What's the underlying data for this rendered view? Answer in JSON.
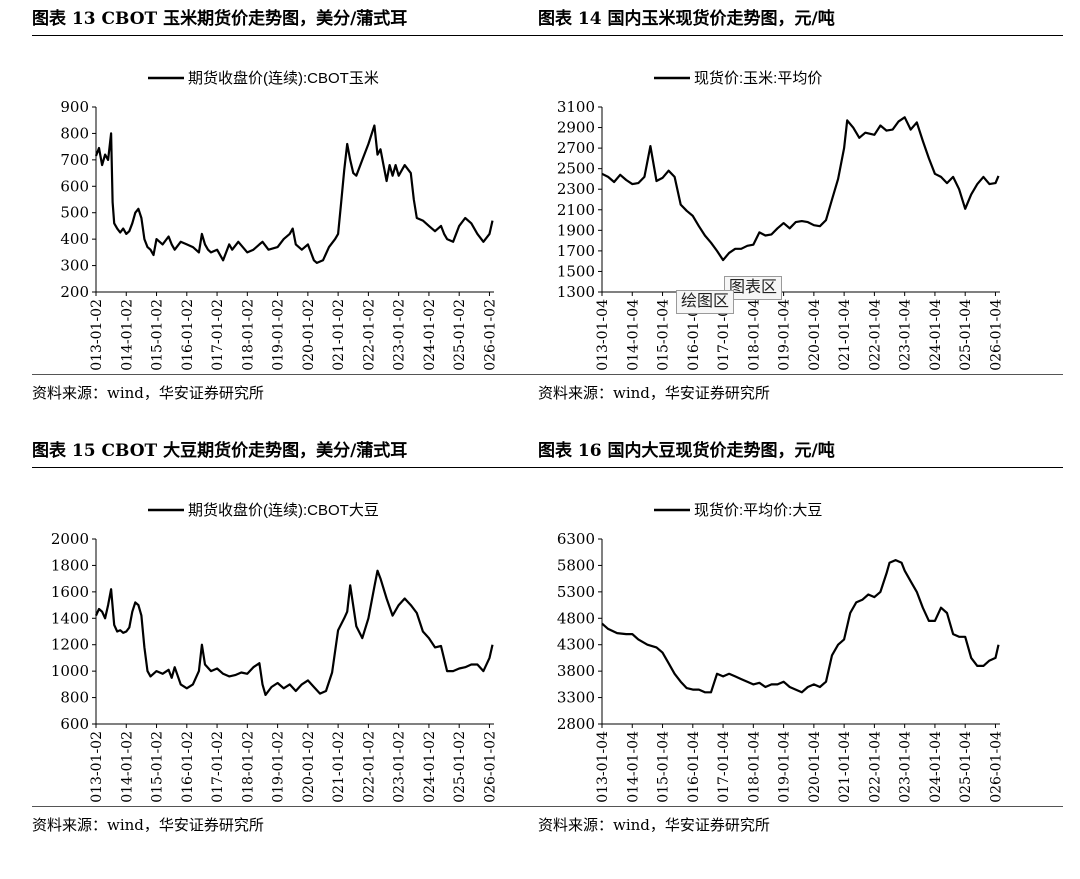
{
  "panels": [
    {
      "title": "图表 13 CBOT 玉米期货价走势图，美分/蒲式耳",
      "source": "资料来源：wind，华安证券研究所"
    },
    {
      "title": "图表 14 国内玉米现货价走势图，元/吨",
      "source": "资料来源：wind，华安证券研究所"
    },
    {
      "title": "图表 15 CBOT 大豆期货价走势图，美分/蒲式耳",
      "source": "资料来源：wind，华安证券研究所"
    },
    {
      "title": "图表 16 国内大豆现货价走势图，元/吨",
      "source": "资料来源：wind，华安证券研究所"
    }
  ],
  "overlays": {
    "plot_area_label": "图表区",
    "chart_area_label": "绘图区"
  },
  "chart_data": [
    {
      "type": "line",
      "legend": "期货收盘价(连续):CBOT玉米",
      "series": [
        {
          "name": "期货收盘价(连续):CBOT玉米",
          "x": [
            2013.0,
            2013.1,
            2013.2,
            2013.3,
            2013.4,
            2013.5,
            2013.55,
            2013.6,
            2013.7,
            2013.8,
            2013.9,
            2014.0,
            2014.1,
            2014.2,
            2014.3,
            2014.4,
            2014.5,
            2014.6,
            2014.7,
            2014.8,
            2014.9,
            2015.0,
            2015.2,
            2015.4,
            2015.5,
            2015.6,
            2015.8,
            2016.0,
            2016.2,
            2016.4,
            2016.5,
            2016.6,
            2016.7,
            2016.8,
            2017.0,
            2017.2,
            2017.4,
            2017.5,
            2017.7,
            2018.0,
            2018.2,
            2018.4,
            2018.5,
            2018.7,
            2019.0,
            2019.2,
            2019.4,
            2019.5,
            2019.6,
            2019.8,
            2020.0,
            2020.2,
            2020.3,
            2020.5,
            2020.7,
            2020.9,
            2021.0,
            2021.1,
            2021.2,
            2021.3,
            2021.4,
            2021.5,
            2021.6,
            2021.8,
            2022.0,
            2022.2,
            2022.3,
            2022.4,
            2022.5,
            2022.6,
            2022.7,
            2022.8,
            2022.9,
            2023.0,
            2023.2,
            2023.4,
            2023.5,
            2023.6,
            2023.8,
            2024.0,
            2024.2,
            2024.4,
            2024.5,
            2024.6,
            2024.8,
            2025.0,
            2025.2,
            2025.4,
            2025.6,
            2025.8,
            2026.0,
            2026.1
          ],
          "values": [
            715,
            745,
            680,
            720,
            700,
            800,
            540,
            460,
            440,
            425,
            440,
            420,
            430,
            460,
            500,
            515,
            480,
            400,
            370,
            360,
            340,
            400,
            380,
            410,
            380,
            360,
            390,
            380,
            370,
            350,
            420,
            380,
            360,
            350,
            360,
            320,
            380,
            360,
            390,
            350,
            360,
            380,
            390,
            360,
            370,
            400,
            420,
            440,
            380,
            360,
            380,
            320,
            310,
            320,
            370,
            400,
            420,
            540,
            660,
            760,
            700,
            650,
            640,
            700,
            760,
            830,
            720,
            740,
            680,
            620,
            680,
            640,
            680,
            640,
            680,
            650,
            550,
            480,
            470,
            450,
            430,
            450,
            420,
            400,
            390,
            450,
            480,
            460,
            420,
            390,
            420,
            470
          ]
        }
      ],
      "y_ticks": [
        200,
        300,
        400,
        500,
        600,
        700,
        800,
        900
      ],
      "ylim": [
        200,
        900
      ],
      "x_ticks": [
        "2013-01-02",
        "2014-01-02",
        "2015-01-02",
        "2016-01-02",
        "2017-01-02",
        "2018-01-02",
        "2019-01-02",
        "2020-01-02",
        "2021-01-02",
        "2022-01-02",
        "2023-01-02",
        "2024-01-02",
        "2025-01-02",
        "2026-01-02"
      ],
      "xlim": [
        2013.0,
        2026.15
      ]
    },
    {
      "type": "line",
      "legend": "现货价:玉米:平均价",
      "series": [
        {
          "name": "现货价:玉米:平均价",
          "x": [
            2013.0,
            2013.2,
            2013.4,
            2013.6,
            2013.8,
            2014.0,
            2014.2,
            2014.4,
            2014.6,
            2014.8,
            2015.0,
            2015.2,
            2015.4,
            2015.6,
            2015.8,
            2016.0,
            2016.2,
            2016.4,
            2016.6,
            2016.8,
            2017.0,
            2017.2,
            2017.4,
            2017.6,
            2017.8,
            2018.0,
            2018.2,
            2018.4,
            2018.6,
            2018.8,
            2019.0,
            2019.2,
            2019.4,
            2019.6,
            2019.8,
            2020.0,
            2020.2,
            2020.4,
            2020.6,
            2020.8,
            2021.0,
            2021.1,
            2021.3,
            2021.5,
            2021.7,
            2022.0,
            2022.2,
            2022.4,
            2022.6,
            2022.8,
            2023.0,
            2023.2,
            2023.4,
            2023.6,
            2023.8,
            2024.0,
            2024.2,
            2024.4,
            2024.6,
            2024.8,
            2025.0,
            2025.2,
            2025.4,
            2025.6,
            2025.8,
            2026.0,
            2026.1
          ],
          "values": [
            2450,
            2420,
            2370,
            2440,
            2390,
            2350,
            2360,
            2420,
            2720,
            2380,
            2410,
            2480,
            2420,
            2150,
            2090,
            2040,
            1940,
            1850,
            1780,
            1700,
            1610,
            1680,
            1720,
            1720,
            1750,
            1760,
            1880,
            1850,
            1860,
            1920,
            1970,
            1920,
            1980,
            1990,
            1980,
            1950,
            1940,
            2000,
            2200,
            2400,
            2700,
            2970,
            2900,
            2800,
            2850,
            2830,
            2920,
            2870,
            2880,
            2960,
            3000,
            2880,
            2950,
            2770,
            2600,
            2450,
            2420,
            2360,
            2420,
            2300,
            2110,
            2250,
            2350,
            2420,
            2350,
            2360,
            2430
          ]
        }
      ],
      "y_ticks": [
        1300,
        1500,
        1700,
        1900,
        2100,
        2300,
        2500,
        2700,
        2900,
        3100
      ],
      "ylim": [
        1300,
        3100
      ],
      "x_ticks": [
        "2013-01-04",
        "2014-01-04",
        "2015-01-04",
        "2016-01-04",
        "2017-01-04",
        "2018-01-04",
        "2019-01-04",
        "2020-01-04",
        "2021-01-04",
        "2022-01-04",
        "2023-01-04",
        "2024-01-04",
        "2025-01-04",
        "2026-01-04"
      ],
      "xlim": [
        2013.0,
        2026.15
      ]
    },
    {
      "type": "line",
      "legend": "期货收盘价(连续):CBOT大豆",
      "series": [
        {
          "name": "期货收盘价(连续):CBOT大豆",
          "x": [
            2013.0,
            2013.1,
            2013.2,
            2013.3,
            2013.4,
            2013.5,
            2013.6,
            2013.7,
            2013.8,
            2013.9,
            2014.0,
            2014.1,
            2014.2,
            2014.3,
            2014.4,
            2014.5,
            2014.6,
            2014.7,
            2014.8,
            2015.0,
            2015.2,
            2015.4,
            2015.5,
            2015.6,
            2015.8,
            2016.0,
            2016.2,
            2016.4,
            2016.5,
            2016.6,
            2016.8,
            2017.0,
            2017.2,
            2017.4,
            2017.6,
            2017.8,
            2018.0,
            2018.2,
            2018.4,
            2018.5,
            2018.6,
            2018.8,
            2019.0,
            2019.2,
            2019.4,
            2019.6,
            2019.8,
            2020.0,
            2020.2,
            2020.4,
            2020.6,
            2020.8,
            2021.0,
            2021.2,
            2021.3,
            2021.4,
            2021.6,
            2021.8,
            2022.0,
            2022.2,
            2022.3,
            2022.4,
            2022.6,
            2022.8,
            2023.0,
            2023.2,
            2023.4,
            2023.6,
            2023.8,
            2024.0,
            2024.2,
            2024.4,
            2024.6,
            2024.8,
            2025.0,
            2025.2,
            2025.4,
            2025.6,
            2025.8,
            2026.0,
            2026.1
          ],
          "values": [
            1420,
            1470,
            1450,
            1400,
            1500,
            1620,
            1350,
            1300,
            1310,
            1290,
            1300,
            1330,
            1450,
            1520,
            1500,
            1420,
            1180,
            1000,
            960,
            1000,
            980,
            1010,
            950,
            1030,
            900,
            870,
            900,
            1000,
            1200,
            1050,
            1000,
            1020,
            980,
            960,
            970,
            990,
            980,
            1030,
            1060,
            900,
            820,
            880,
            910,
            870,
            900,
            850,
            900,
            930,
            880,
            830,
            850,
            990,
            1310,
            1400,
            1450,
            1650,
            1340,
            1250,
            1400,
            1640,
            1760,
            1700,
            1550,
            1420,
            1500,
            1550,
            1500,
            1440,
            1300,
            1250,
            1180,
            1190,
            1000,
            1000,
            1020,
            1030,
            1050,
            1050,
            1000,
            1100,
            1200
          ]
        }
      ],
      "y_ticks": [
        600,
        800,
        1000,
        1200,
        1400,
        1600,
        1800,
        2000
      ],
      "ylim": [
        600,
        2000
      ],
      "x_ticks": [
        "2013-01-02",
        "2014-01-02",
        "2015-01-02",
        "2016-01-02",
        "2017-01-02",
        "2018-01-02",
        "2019-01-02",
        "2020-01-02",
        "2021-01-02",
        "2022-01-02",
        "2023-01-02",
        "2024-01-02",
        "2025-01-02",
        "2026-01-02"
      ],
      "xlim": [
        2013.0,
        2026.15
      ]
    },
    {
      "type": "line",
      "legend": "现货价:平均价:大豆",
      "series": [
        {
          "name": "现货价:平均价:大豆",
          "x": [
            2013.0,
            2013.2,
            2013.5,
            2013.8,
            2014.0,
            2014.2,
            2014.5,
            2014.8,
            2015.0,
            2015.2,
            2015.4,
            2015.6,
            2015.8,
            2016.0,
            2016.2,
            2016.4,
            2016.6,
            2016.8,
            2017.0,
            2017.2,
            2017.4,
            2017.6,
            2017.8,
            2018.0,
            2018.2,
            2018.4,
            2018.6,
            2018.8,
            2019.0,
            2019.2,
            2019.4,
            2019.6,
            2019.8,
            2020.0,
            2020.2,
            2020.4,
            2020.6,
            2020.8,
            2021.0,
            2021.2,
            2021.4,
            2021.6,
            2021.8,
            2022.0,
            2022.2,
            2022.4,
            2022.5,
            2022.7,
            2022.9,
            2023.0,
            2023.2,
            2023.4,
            2023.6,
            2023.8,
            2024.0,
            2024.2,
            2024.4,
            2024.6,
            2024.8,
            2025.0,
            2025.2,
            2025.4,
            2025.6,
            2025.8,
            2026.0,
            2026.1
          ],
          "values": [
            4700,
            4600,
            4520,
            4500,
            4500,
            4400,
            4300,
            4250,
            4150,
            3950,
            3750,
            3600,
            3480,
            3450,
            3450,
            3400,
            3400,
            3750,
            3700,
            3750,
            3700,
            3650,
            3600,
            3550,
            3580,
            3500,
            3550,
            3550,
            3600,
            3500,
            3450,
            3400,
            3500,
            3550,
            3500,
            3600,
            4100,
            4300,
            4400,
            4900,
            5100,
            5150,
            5250,
            5200,
            5300,
            5650,
            5850,
            5900,
            5850,
            5700,
            5500,
            5300,
            5000,
            4750,
            4750,
            5000,
            4900,
            4500,
            4450,
            4450,
            4050,
            3900,
            3900,
            4000,
            4050,
            4300
          ]
        }
      ],
      "y_ticks": [
        2800,
        3300,
        3800,
        4300,
        4800,
        5300,
        5800,
        6300
      ],
      "ylim": [
        2800,
        6300
      ],
      "x_ticks": [
        "2013-01-04",
        "2014-01-04",
        "2015-01-04",
        "2016-01-04",
        "2017-01-04",
        "2018-01-04",
        "2019-01-04",
        "2020-01-04",
        "2021-01-04",
        "2022-01-04",
        "2023-01-04",
        "2024-01-04",
        "2025-01-04",
        "2026-01-04"
      ],
      "xlim": [
        2013.0,
        2026.15
      ]
    }
  ]
}
